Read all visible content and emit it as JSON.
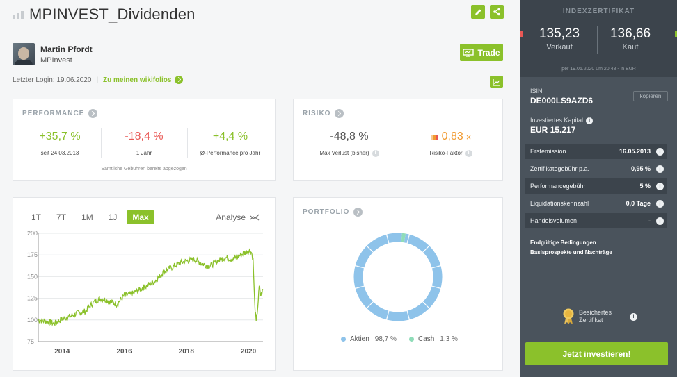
{
  "header": {
    "title": "MPINVEST_Dividenden",
    "author_name": "Martin Pfordt",
    "author_company": "MPInvest",
    "trade_label": "Trade",
    "last_login_label": "Letzter Login: 19.06.2020",
    "separator": "|",
    "wikifolios_link": "Zu meinen wikifolios"
  },
  "performance": {
    "title": "PERFORMANCE",
    "stats": [
      {
        "value": "+35,7 %",
        "label": "seit 24.03.2013"
      },
      {
        "value": "-18,4 %",
        "label": "1 Jahr"
      },
      {
        "value": "+4,4 %",
        "label": "Ø-Performance pro Jahr"
      }
    ],
    "footnote": "Sämtliche Gebühren bereits abgezogen"
  },
  "risk": {
    "title": "RISIKO",
    "max_loss_value": "-48,8 %",
    "max_loss_label": "Max Verlust (bisher)",
    "risk_factor_value": "0,83",
    "risk_factor_unit": "×",
    "risk_factor_label": "Risiko-Faktor"
  },
  "chart_panel": {
    "ranges": [
      "1T",
      "7T",
      "1M",
      "1J",
      "Max"
    ],
    "active_range": "Max",
    "analyse_label": "Analyse"
  },
  "chart_data": [
    {
      "type": "line",
      "y_ticks": [
        200,
        175,
        150,
        125,
        100,
        75
      ],
      "x_ticks": [
        "2014",
        "2016",
        "2018",
        "2020"
      ],
      "ylim": [
        75,
        200
      ],
      "xlim": [
        2013.23,
        2020.47
      ],
      "grid": "horizontal",
      "color": "#8bc12b",
      "series": [
        {
          "x": [
            2013.23,
            2013.5,
            2013.75,
            2014.0,
            2014.25,
            2014.5,
            2014.75,
            2015.0,
            2015.25,
            2015.5,
            2015.75,
            2016.0,
            2016.25,
            2016.5,
            2016.75,
            2017.0,
            2017.25,
            2017.5,
            2017.75,
            2018.0,
            2018.25,
            2018.5,
            2018.75,
            2019.0,
            2019.25,
            2019.5,
            2019.75,
            2020.0,
            2020.1,
            2020.15,
            2020.2,
            2020.25,
            2020.3,
            2020.35,
            2020.4,
            2020.47
          ],
          "values": [
            100,
            98,
            96,
            101,
            104,
            108,
            110,
            120,
            125,
            122,
            118,
            128,
            130,
            135,
            140,
            145,
            155,
            160,
            165,
            168,
            170,
            165,
            162,
            168,
            172,
            170,
            175,
            180,
            178,
            170,
            120,
            97,
            115,
            138,
            128,
            135
          ]
        }
      ]
    },
    {
      "type": "pie",
      "title": "PORTFOLIO",
      "slices": [
        {
          "label": "Aktien",
          "value": 98.7,
          "color": "#8ec3ea",
          "pct": "98,7 %"
        },
        {
          "label": "Cash",
          "value": 1.3,
          "color": "#8fdcb8",
          "pct": "1,3 %"
        }
      ]
    }
  ],
  "sidebar": {
    "header": "INDEXZERTIFIKAT",
    "sell_price": "135,23",
    "sell_label": "Verkauf",
    "buy_price": "136,66",
    "buy_label": "Kauf",
    "price_date": "per 19.06.2020 um 20:48 - in EUR",
    "isin_label": "ISIN",
    "isin": "DE000LS9AZD6",
    "copy_label": "kopieren",
    "capital_label": "Investiertes Kapital",
    "capital": "EUR 15.217",
    "rows": [
      {
        "label": "Erstemission",
        "value": "16.05.2013"
      },
      {
        "label": "Zertifikategebühr p.a.",
        "value": "0,95 %"
      },
      {
        "label": "Performancegebühr",
        "value": "5 %"
      },
      {
        "label": "Liquidationskennzahl",
        "value": "0,0 Tage"
      },
      {
        "label": "Handelsvolumen",
        "value": "-"
      }
    ],
    "terms_1": "Endgültige Bedingungen",
    "terms_2": "Basisprospekte und Nachträge",
    "badge_line1": "Besichertes",
    "badge_line2": "Zertifikat",
    "invest_label": "Jetzt investieren!"
  }
}
